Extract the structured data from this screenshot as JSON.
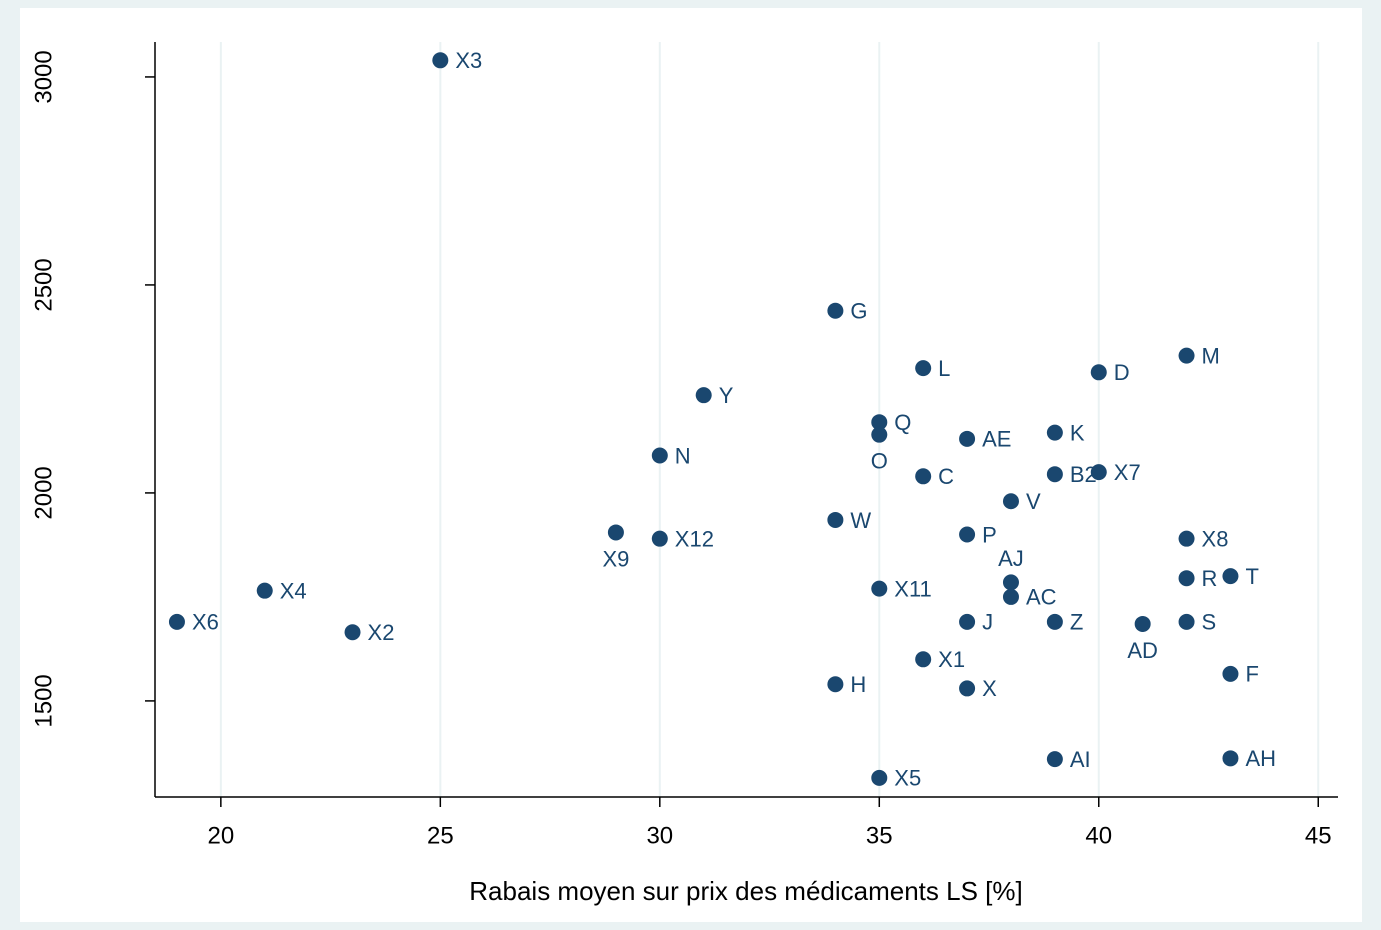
{
  "chart_data": {
    "type": "scatter",
    "x_label": "Rabais moyen sur prix des médicaments LS [%]",
    "color": "#1a476f",
    "grid": true,
    "xlim": [
      18.5,
      45.45
    ],
    "ylim": [
      1269,
      3084
    ],
    "xticks": [
      20,
      25,
      30,
      35,
      40,
      45
    ],
    "yticks": [
      1500,
      2000,
      2500,
      3000
    ],
    "labels": [
      "X3",
      "G",
      "L",
      "D",
      "M",
      "Y",
      "Q",
      "O",
      "AE",
      "K",
      "N",
      "C",
      "B2",
      "X7",
      "V",
      "W",
      "X9",
      "X12",
      "P",
      "X8",
      "X4",
      "X11",
      "AJ",
      "AC",
      "R",
      "T",
      "X6",
      "X2",
      "J",
      "Z",
      "AD",
      "S",
      "X1",
      "F",
      "H",
      "X",
      "AI",
      "AH",
      "X5"
    ],
    "x": [
      25,
      34,
      36,
      40,
      42,
      31,
      35,
      35,
      37,
      39,
      30,
      36,
      39,
      40,
      38,
      34,
      29,
      30,
      37,
      42,
      21,
      35,
      38,
      38,
      42,
      43,
      19,
      23,
      37,
      39,
      41,
      42,
      36,
      43,
      34,
      37,
      39,
      43,
      35
    ],
    "values": [
      3040,
      2438,
      2300,
      2290,
      2330,
      2235,
      2170,
      2140,
      2130,
      2145,
      2090,
      2040,
      2045,
      2050,
      1980,
      1935,
      1905,
      1890,
      1900,
      1890,
      1765,
      1770,
      1785,
      1750,
      1795,
      1800,
      1690,
      1665,
      1690,
      1690,
      1685,
      1690,
      1600,
      1565,
      1540,
      1530,
      1360,
      1362,
      1315
    ]
  }
}
